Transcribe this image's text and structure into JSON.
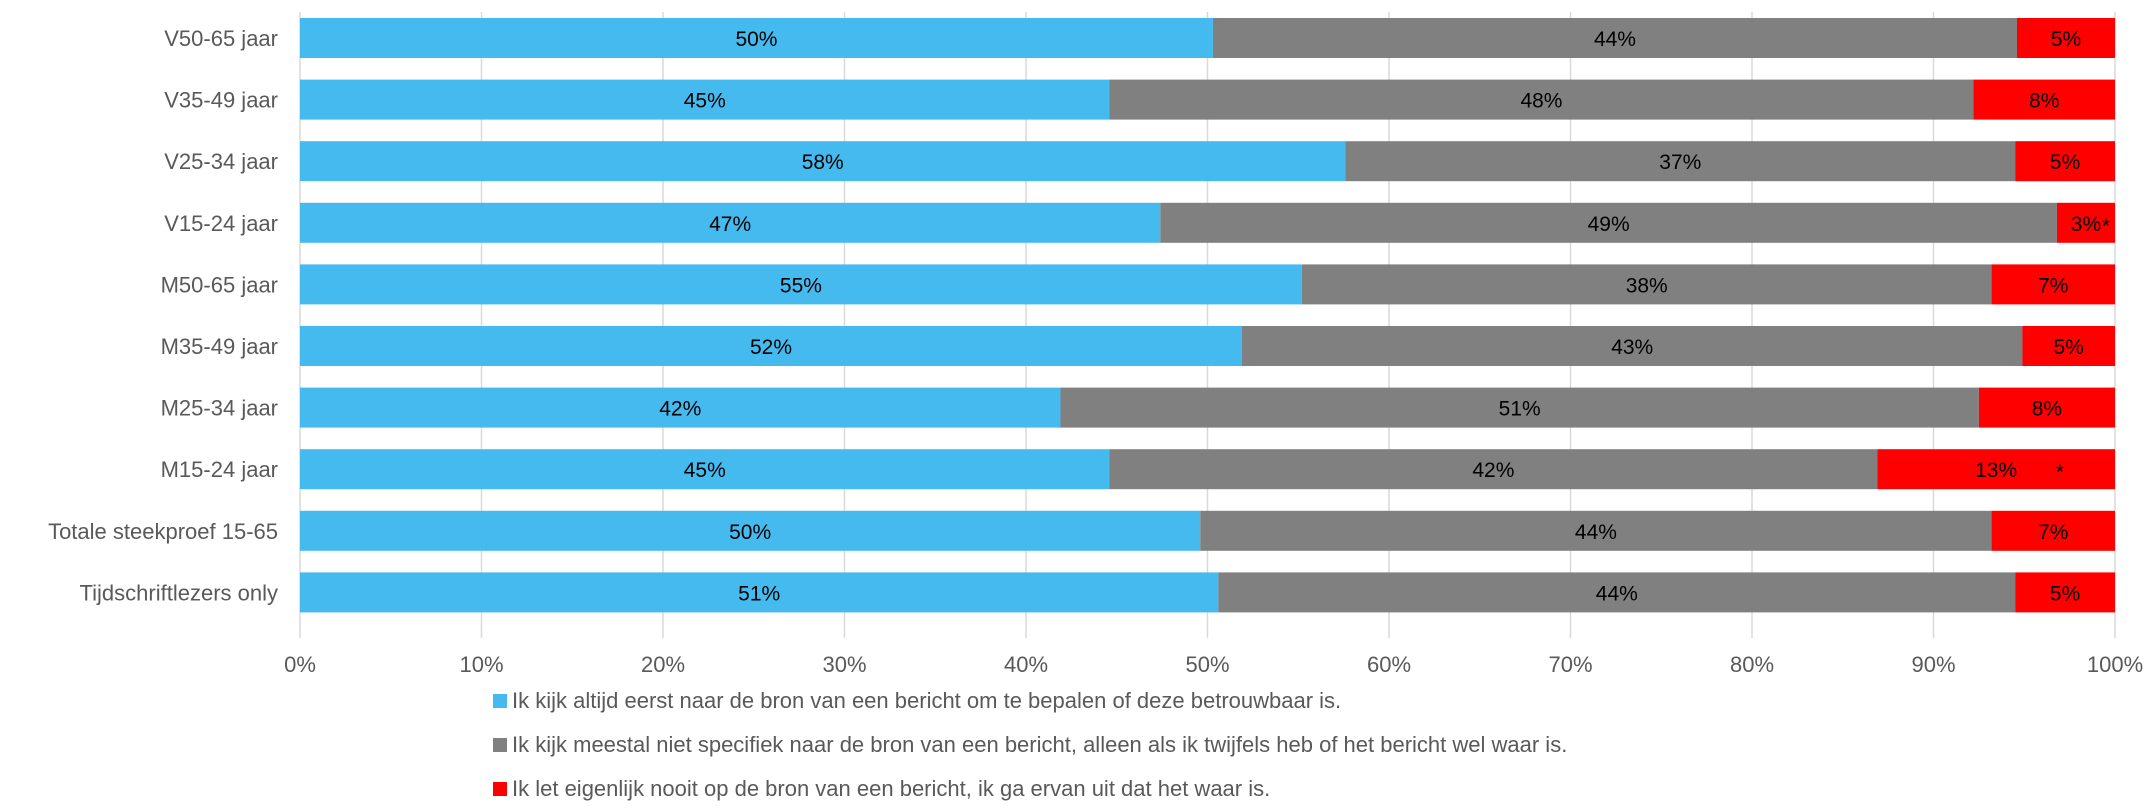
{
  "chart_data": {
    "type": "bar",
    "orientation": "horizontal",
    "stacked": true,
    "normalized": true,
    "categories": [
      "V50-65 jaar",
      "V35-49 jaar",
      "V25-34 jaar",
      "V15-24 jaar",
      "M50-65 jaar",
      "M35-49 jaar",
      "M25-34 jaar",
      "M15-24 jaar",
      "Totale steekproef 15-65",
      "Tijdschriftlezers only"
    ],
    "series": [
      {
        "name": "Ik kijk altijd eerst naar de bron van een bericht om te bepalen of deze betrouwbaar is.",
        "color": "#45baee",
        "values": [
          50.3,
          44.6,
          57.6,
          47.4,
          55.2,
          51.9,
          41.9,
          44.6,
          49.6,
          50.6
        ],
        "labels": [
          "50%",
          "45%",
          "58%",
          "47%",
          "55%",
          "52%",
          "42%",
          "45%",
          "50%",
          "51%"
        ]
      },
      {
        "name": "Ik kijk meestal niet specifiek naar de bron van een bericht, alleen als ik twijfels heb of het bericht wel waar is.",
        "color": "#808080",
        "values": [
          44.3,
          47.6,
          36.9,
          49.4,
          38.0,
          43.0,
          50.6,
          42.3,
          43.6,
          43.9
        ],
        "labels": [
          "44%",
          "48%",
          "37%",
          "49%",
          "38%",
          "43%",
          "51%",
          "42%",
          "44%",
          "44%"
        ]
      },
      {
        "name": "Ik let eigenlijk nooit op de bron van een bericht, ik ga ervan uit dat het waar is.",
        "color": "#ff0000",
        "values": [
          5.4,
          7.8,
          5.5,
          3.2,
          6.8,
          5.1,
          7.5,
          13.1,
          6.8,
          5.5
        ],
        "labels": [
          "5%",
          "8%",
          "5%",
          "3%",
          "7%",
          "5%",
          "8%",
          "13%",
          "7%",
          "5%"
        ]
      }
    ],
    "annotations": [
      {
        "category": "V15-24 jaar",
        "text": "*"
      },
      {
        "category": "M15-24 jaar",
        "text": "*"
      }
    ],
    "xlim": [
      0,
      100
    ],
    "x_ticks": [
      "0%",
      "10%",
      "20%",
      "30%",
      "40%",
      "50%",
      "60%",
      "70%",
      "80%",
      "90%",
      "100%"
    ],
    "grid": "vertical",
    "legend_position": "bottom",
    "title": "",
    "xlabel": "",
    "ylabel": ""
  }
}
